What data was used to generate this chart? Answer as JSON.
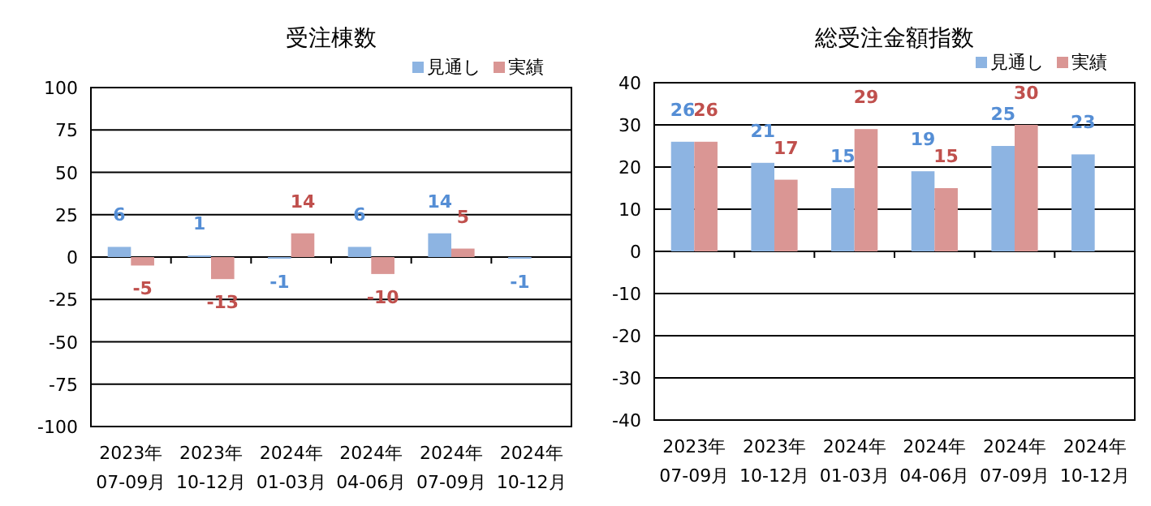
{
  "chart_data": [
    {
      "type": "bar",
      "title": "受注棟数",
      "categories": [
        "2023年\n07-09月",
        "2023年\n10-12月",
        "2024年\n01-03月",
        "2024年\n04-06月",
        "2024年\n07-09月",
        "2024年\n10-12月"
      ],
      "series": [
        {
          "name": "見通し",
          "color": "#8db4e2",
          "values": [
            6,
            1,
            -1,
            6,
            14,
            -1
          ]
        },
        {
          "name": "実績",
          "color": "#da9694",
          "values": [
            -5,
            -13,
            14,
            -10,
            5,
            null
          ]
        }
      ],
      "ylim": [
        -100,
        100
      ],
      "yticks": [
        -100,
        -75,
        -50,
        -25,
        0,
        25,
        50,
        75,
        100
      ],
      "grid": "y",
      "legend": "top right",
      "data_labels": true
    },
    {
      "type": "bar",
      "title": "総受注金額指数",
      "categories": [
        "2023年\n07-09月",
        "2023年\n10-12月",
        "2024年\n01-03月",
        "2024年\n04-06月",
        "2024年\n07-09月",
        "2024年\n10-12月"
      ],
      "series": [
        {
          "name": "見通し",
          "color": "#8db4e2",
          "values": [
            26,
            21,
            15,
            19,
            25,
            23
          ]
        },
        {
          "name": "実績",
          "color": "#da9694",
          "values": [
            26,
            17,
            29,
            15,
            30,
            null
          ]
        }
      ],
      "ylim": [
        -40,
        40
      ],
      "yticks": [
        -40,
        -30,
        -20,
        -10,
        0,
        10,
        20,
        30,
        40
      ],
      "grid": "y",
      "legend": "top right",
      "data_labels": true
    }
  ]
}
